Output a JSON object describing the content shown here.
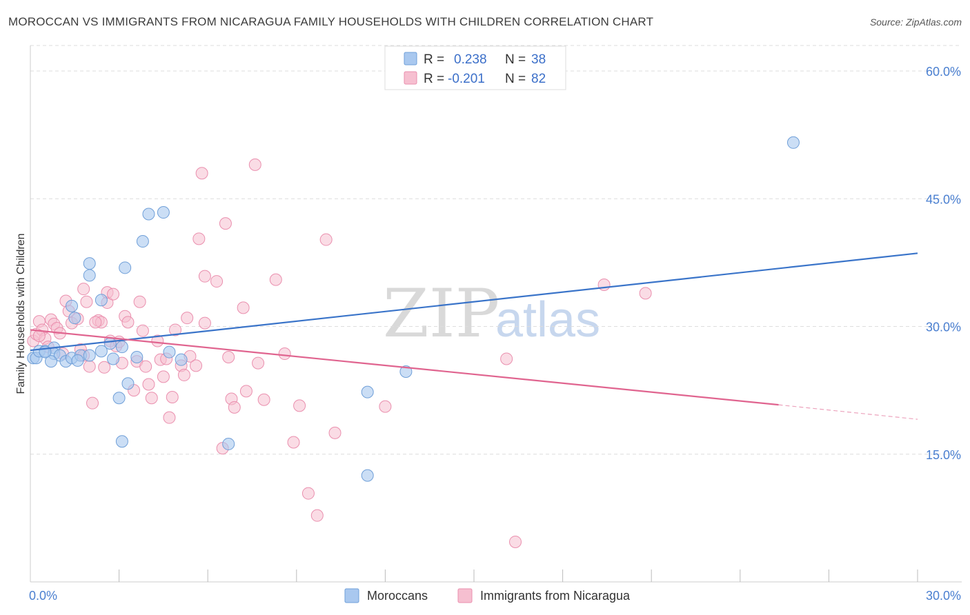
{
  "header": {
    "title": "MOROCCAN VS IMMIGRANTS FROM NICARAGUA FAMILY HOUSEHOLDS WITH CHILDREN CORRELATION CHART",
    "source": "Source: ZipAtlas.com"
  },
  "watermark": {
    "zip": "ZIP",
    "atlas": "atlas"
  },
  "legend": {
    "rows": [
      {
        "r_label": "R =",
        "r_value": "0.238",
        "n_label": "N =",
        "n_value": "38"
      },
      {
        "r_label": "R =",
        "r_value": "-0.201",
        "n_label": "N =",
        "n_value": "82"
      }
    ]
  },
  "bottom_legend": {
    "series1": "Moroccans",
    "series2": "Immigrants from Nicaragua"
  },
  "colors": {
    "blue_fill": "#a9c8ef",
    "blue_stroke": "#6f9fd8",
    "blue_line": "#3a74c9",
    "pink_fill": "#f6bfd0",
    "pink_stroke": "#ea8fae",
    "pink_line": "#e0648f",
    "grid": "#dddddd",
    "axis_text": "#4a7fd0"
  },
  "chart_data": {
    "type": "scatter",
    "title": "MOROCCAN VS IMMIGRANTS FROM NICARAGUA FAMILY HOUSEHOLDS WITH CHILDREN CORRELATION CHART",
    "xlabel": "",
    "ylabel": "Family Households with Children",
    "xlim": [
      0,
      30
    ],
    "ylim": [
      0,
      63
    ],
    "x_ticks": [
      {
        "value": 0,
        "label": "0.0%"
      },
      {
        "value": 30,
        "label": "30.0%"
      }
    ],
    "y_ticks": [
      {
        "value": 15,
        "label": "15.0%"
      },
      {
        "value": 30,
        "label": "30.0%"
      },
      {
        "value": 45,
        "label": "45.0%"
      },
      {
        "value": 60,
        "label": "60.0%"
      }
    ],
    "series": [
      {
        "name": "Moroccans",
        "R": 0.238,
        "N": 38,
        "trend": {
          "x0": 0,
          "y0": 27.2,
          "x1": 30,
          "y1": 38.6
        },
        "points": [
          [
            0.1,
            26.3
          ],
          [
            0.2,
            26.3
          ],
          [
            0.3,
            27.1
          ],
          [
            0.5,
            27.1
          ],
          [
            0.8,
            27.5
          ],
          [
            0.8,
            26.8
          ],
          [
            1.0,
            26.6
          ],
          [
            0.7,
            25.9
          ],
          [
            1.2,
            25.9
          ],
          [
            1.4,
            26.3
          ],
          [
            1.7,
            26.6
          ],
          [
            1.6,
            26.0
          ],
          [
            1.4,
            32.4
          ],
          [
            1.5,
            31.0
          ],
          [
            2.0,
            36.0
          ],
          [
            2.0,
            26.6
          ],
          [
            2.4,
            33.1
          ],
          [
            2.4,
            27.1
          ],
          [
            2.7,
            28.0
          ],
          [
            2.8,
            26.2
          ],
          [
            3.1,
            27.6
          ],
          [
            3.2,
            36.9
          ],
          [
            3.0,
            21.6
          ],
          [
            3.3,
            23.3
          ],
          [
            3.6,
            26.4
          ],
          [
            3.8,
            40.0
          ],
          [
            4.0,
            43.2
          ],
          [
            4.5,
            43.4
          ],
          [
            4.7,
            27.0
          ],
          [
            3.1,
            16.5
          ],
          [
            5.1,
            26.1
          ],
          [
            6.7,
            16.2
          ],
          [
            11.4,
            22.3
          ],
          [
            11.4,
            12.5
          ],
          [
            12.7,
            24.7
          ],
          [
            25.8,
            51.6
          ],
          [
            0.5,
            27.0
          ],
          [
            2.0,
            37.4
          ]
        ]
      },
      {
        "name": "Immigrants from Nicaragua",
        "R": -0.201,
        "N": 82,
        "trend": {
          "x0": 0,
          "y0": 29.6,
          "x1": 25.3,
          "y1": 20.8,
          "dash_x1": 30,
          "dash_y1": 19.1
        },
        "points": [
          [
            0.1,
            28.3
          ],
          [
            0.2,
            29.1
          ],
          [
            0.3,
            30.6
          ],
          [
            0.4,
            29.6
          ],
          [
            0.5,
            28.6
          ],
          [
            0.6,
            27.6
          ],
          [
            0.7,
            30.8
          ],
          [
            0.8,
            30.3
          ],
          [
            0.9,
            29.8
          ],
          [
            1.0,
            29.2
          ],
          [
            1.1,
            26.8
          ],
          [
            1.2,
            33.0
          ],
          [
            1.3,
            31.8
          ],
          [
            1.4,
            30.4
          ],
          [
            1.6,
            30.9
          ],
          [
            1.7,
            27.3
          ],
          [
            1.8,
            26.6
          ],
          [
            1.8,
            34.4
          ],
          [
            1.9,
            32.9
          ],
          [
            2.0,
            25.3
          ],
          [
            2.1,
            21.0
          ],
          [
            2.3,
            30.7
          ],
          [
            2.4,
            30.5
          ],
          [
            2.5,
            25.2
          ],
          [
            2.6,
            32.8
          ],
          [
            2.6,
            34.0
          ],
          [
            2.7,
            28.3
          ],
          [
            2.8,
            33.8
          ],
          [
            2.9,
            27.7
          ],
          [
            3.0,
            28.2
          ],
          [
            3.1,
            25.7
          ],
          [
            3.2,
            31.2
          ],
          [
            3.3,
            30.5
          ],
          [
            3.5,
            22.5
          ],
          [
            3.6,
            25.9
          ],
          [
            3.7,
            32.9
          ],
          [
            3.8,
            29.5
          ],
          [
            3.9,
            25.3
          ],
          [
            4.0,
            23.2
          ],
          [
            4.1,
            21.6
          ],
          [
            4.3,
            28.3
          ],
          [
            4.4,
            26.1
          ],
          [
            4.5,
            24.1
          ],
          [
            4.6,
            26.2
          ],
          [
            4.7,
            19.3
          ],
          [
            4.8,
            21.7
          ],
          [
            4.9,
            29.6
          ],
          [
            5.1,
            25.4
          ],
          [
            5.2,
            24.3
          ],
          [
            5.3,
            31.0
          ],
          [
            5.4,
            26.5
          ],
          [
            5.6,
            25.4
          ],
          [
            5.7,
            40.3
          ],
          [
            5.8,
            48.0
          ],
          [
            5.9,
            35.9
          ],
          [
            5.9,
            30.4
          ],
          [
            6.3,
            35.3
          ],
          [
            6.5,
            15.7
          ],
          [
            6.6,
            42.1
          ],
          [
            6.7,
            26.4
          ],
          [
            6.8,
            21.5
          ],
          [
            6.9,
            20.5
          ],
          [
            7.2,
            32.2
          ],
          [
            7.3,
            22.4
          ],
          [
            7.6,
            49.0
          ],
          [
            7.7,
            25.7
          ],
          [
            7.9,
            21.4
          ],
          [
            8.3,
            35.5
          ],
          [
            8.6,
            26.8
          ],
          [
            8.9,
            16.4
          ],
          [
            9.1,
            20.7
          ],
          [
            9.4,
            10.4
          ],
          [
            9.7,
            7.8
          ],
          [
            10.0,
            40.2
          ],
          [
            10.3,
            17.5
          ],
          [
            12.0,
            20.6
          ],
          [
            16.1,
            26.2
          ],
          [
            16.4,
            4.7
          ],
          [
            19.4,
            34.9
          ],
          [
            20.8,
            33.9
          ],
          [
            0.3,
            28.9
          ],
          [
            2.2,
            30.5
          ]
        ]
      }
    ]
  }
}
